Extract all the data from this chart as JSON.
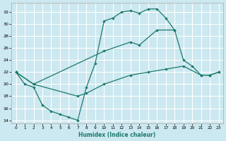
{
  "xlabel": "Humidex (Indice chaleur)",
  "bg_color": "#cce8f0",
  "grid_color": "#ffffff",
  "line_color": "#1a7a6a",
  "xlim": [
    -0.5,
    23.5
  ],
  "ylim": [
    13.5,
    33.5
  ],
  "yticks": [
    14,
    16,
    18,
    20,
    22,
    24,
    26,
    28,
    30,
    32
  ],
  "xticks": [
    0,
    1,
    2,
    3,
    4,
    5,
    6,
    7,
    8,
    9,
    10,
    11,
    12,
    13,
    14,
    15,
    16,
    17,
    18,
    19,
    20,
    21,
    22,
    23
  ],
  "curve1_x": [
    0,
    1,
    2,
    3,
    4,
    5,
    6,
    7,
    8,
    9,
    10,
    11,
    12,
    13,
    14,
    15,
    16,
    17,
    18
  ],
  "curve1_y": [
    22,
    20,
    19.5,
    16.5,
    15.5,
    15.0,
    14.5,
    14.0,
    19.5,
    23.5,
    30.5,
    31.0,
    32.0,
    32.2,
    31.8,
    32.5,
    32.5,
    31.0,
    29.0
  ],
  "curve2_x": [
    0,
    2,
    10,
    13,
    14,
    16,
    18,
    19,
    20,
    21,
    22,
    23
  ],
  "curve2_y": [
    22,
    20,
    25.5,
    27.0,
    26.5,
    29.0,
    29.0,
    24.0,
    23.0,
    21.5,
    21.5,
    22.0
  ],
  "curve3_x": [
    0,
    2,
    7,
    8,
    10,
    13,
    15,
    17,
    19,
    21,
    22,
    23
  ],
  "curve3_y": [
    22,
    20,
    18.0,
    18.5,
    20.0,
    21.5,
    22.0,
    22.5,
    23.0,
    21.5,
    21.5,
    22.0
  ]
}
